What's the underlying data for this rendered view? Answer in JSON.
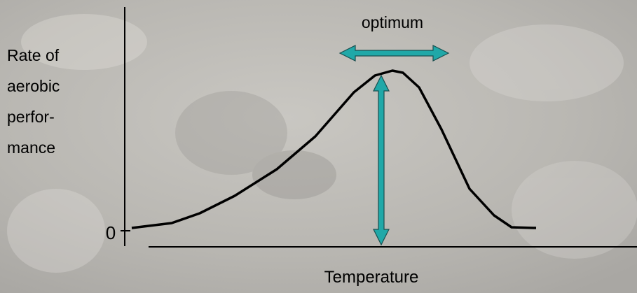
{
  "y_label": [
    "Rate of",
    "aerobic",
    "perfor-",
    "mance"
  ],
  "y_zero": "0",
  "optimum": "optimum",
  "x_label": "Temperature"
}
